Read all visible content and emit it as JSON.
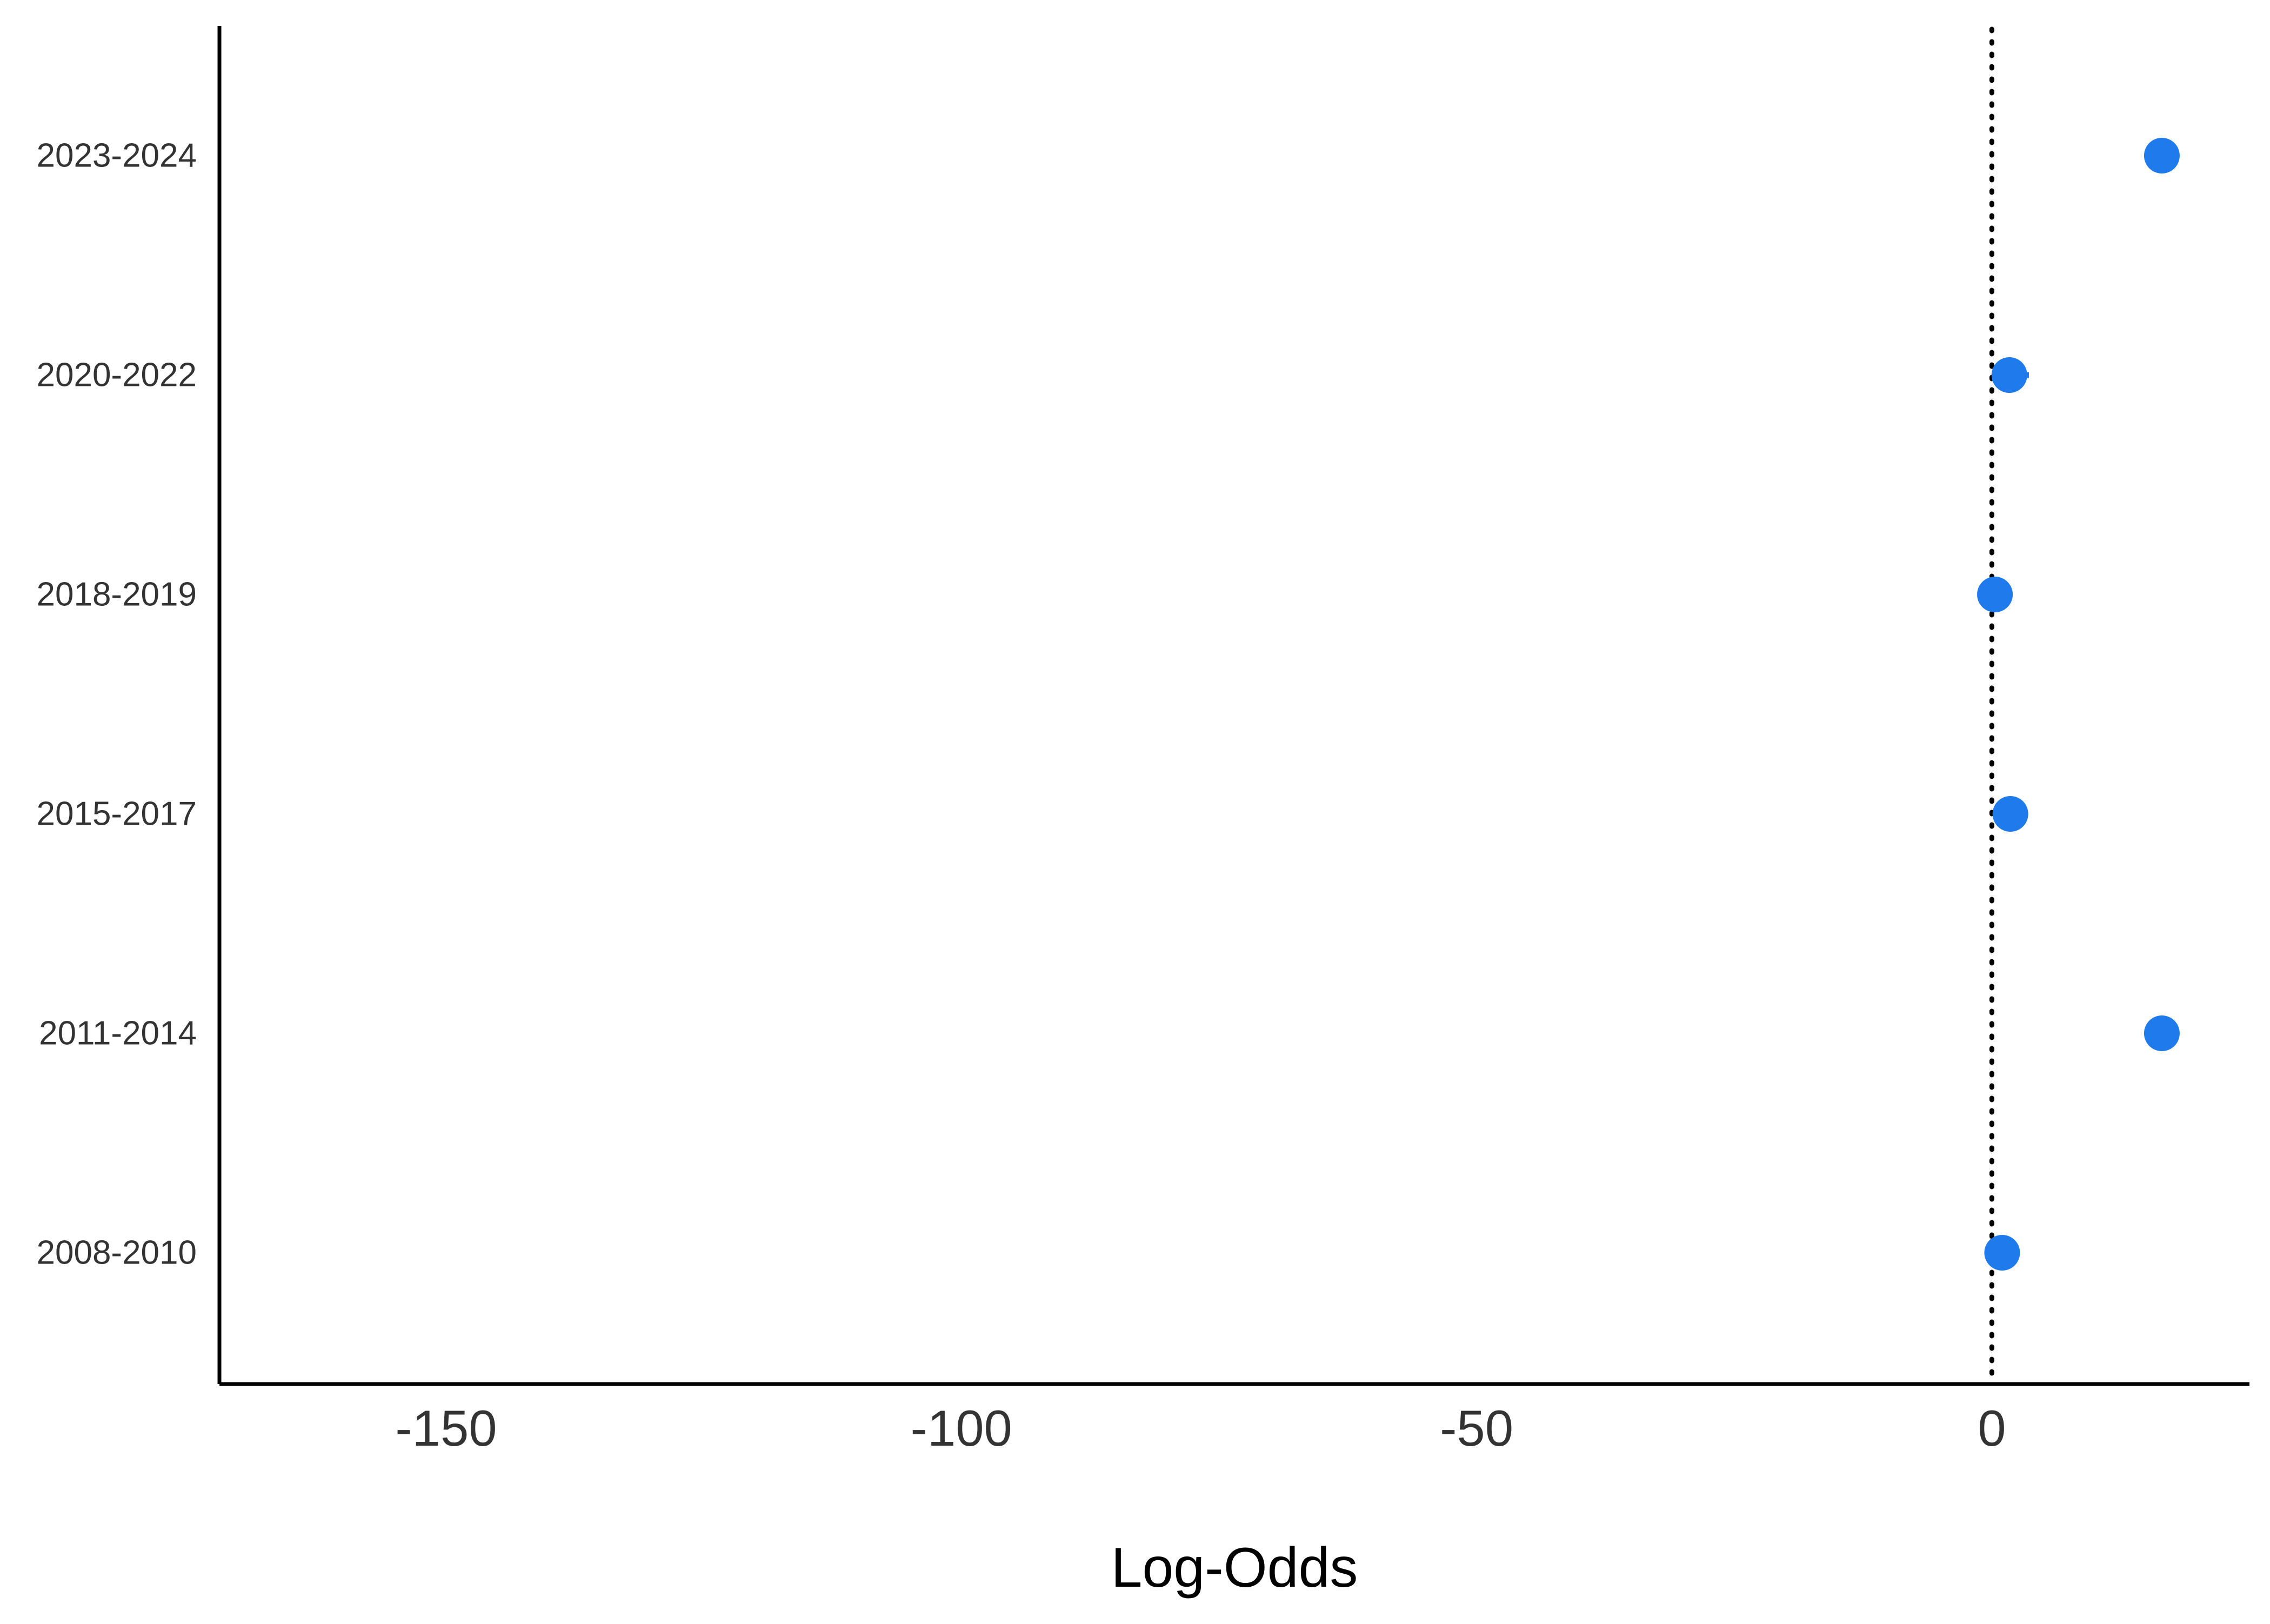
{
  "chart_data": {
    "type": "scatter",
    "xlabel": "Log-Odds",
    "ylabel": "",
    "xlim": [
      -172,
      25
    ],
    "x_ticks": [
      -150,
      -100,
      -50,
      0
    ],
    "x_tick_labels": [
      "-150",
      "-100",
      "-50",
      "0"
    ],
    "reference_line_x": 0,
    "categories": [
      "2008-2010",
      "2011-2014",
      "2015-2017",
      "2018-2019",
      "2020-2022",
      "2023-2024"
    ],
    "series": [
      {
        "values": [
          1.0,
          16.5,
          1.8,
          0.3,
          1.7,
          16.5
        ],
        "ci_low": [
          1.0,
          16.5,
          1.8,
          0.3,
          0.6,
          16.5
        ],
        "ci_high": [
          1.0,
          16.5,
          1.8,
          0.3,
          3.6,
          16.5
        ]
      }
    ],
    "point_color": "#1f7aeb",
    "grid": false,
    "legend": "none"
  }
}
